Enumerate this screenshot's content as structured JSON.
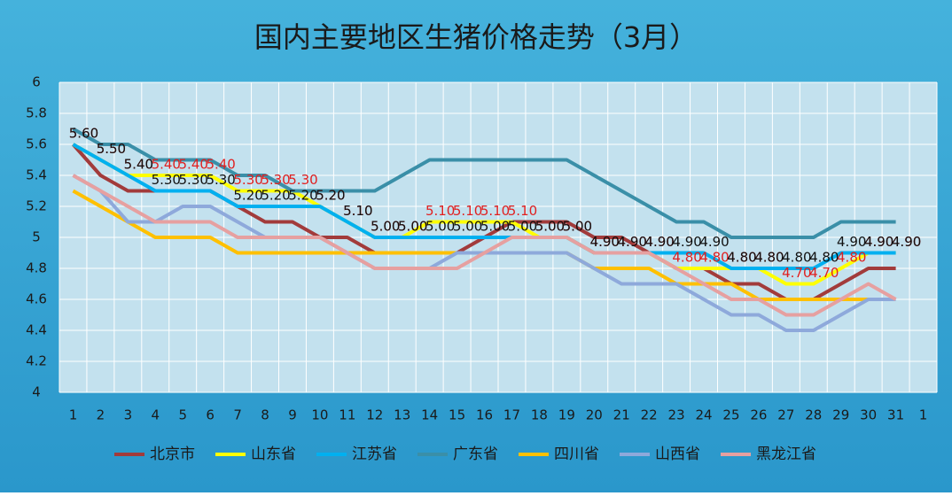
{
  "chart_data": {
    "type": "line",
    "title": "国内主要地区生猪价格走势（3月）",
    "categories": [
      "1",
      "2",
      "3",
      "4",
      "5",
      "6",
      "7",
      "8",
      "9",
      "10",
      "11",
      "12",
      "13",
      "14",
      "15",
      "16",
      "17",
      "18",
      "19",
      "20",
      "21",
      "22",
      "23",
      "24",
      "25",
      "26",
      "27",
      "28",
      "29",
      "30",
      "31",
      "1"
    ],
    "ylim": [
      4,
      6
    ],
    "yticks": [
      4,
      4.2,
      4.4,
      4.6,
      4.8,
      5,
      5.2,
      5.4,
      5.6,
      5.8,
      6
    ],
    "grid": true,
    "legend": "bottom",
    "series": [
      {
        "name": "北京市",
        "color": "#a23b3b",
        "values": [
          5.6,
          5.4,
          5.3,
          5.3,
          5.3,
          5.3,
          5.2,
          5.1,
          5.1,
          5.0,
          5.0,
          4.9,
          4.9,
          4.9,
          4.9,
          5.0,
          5.1,
          5.1,
          5.1,
          5.0,
          5.0,
          4.9,
          4.8,
          4.8,
          4.7,
          4.7,
          4.6,
          4.6,
          4.7,
          4.8,
          4.8,
          null
        ]
      },
      {
        "name": "山东省",
        "color": "#ffff00",
        "label_color": "#e02020",
        "values": [
          5.6,
          5.5,
          5.4,
          5.4,
          5.4,
          5.4,
          5.3,
          5.3,
          5.3,
          5.2,
          5.1,
          5.0,
          5.0,
          5.1,
          5.1,
          5.1,
          5.1,
          5.0,
          5.0,
          4.9,
          4.9,
          4.9,
          4.8,
          4.8,
          4.8,
          4.8,
          4.7,
          4.7,
          4.8,
          4.9,
          4.9,
          null
        ],
        "value_labels": [
          "5.60",
          "5.50",
          "5.40",
          "5.40",
          "5.40",
          "5.40",
          "5.30",
          "5.30",
          "5.30",
          "5.20",
          "5.10",
          "5.00",
          "5.00",
          "5.10",
          "5.10",
          "5.10",
          "5.10",
          "5.00",
          "5.00",
          "4.90",
          "4.90",
          "4.90",
          "4.80",
          "4.80",
          "4.80",
          "4.80",
          "4.70",
          "4.70",
          "4.80",
          "4.90",
          "4.90",
          null
        ]
      },
      {
        "name": "江苏省",
        "color": "#00b0f0",
        "label_color": "#111111",
        "values": [
          5.6,
          5.5,
          5.4,
          5.3,
          5.3,
          5.3,
          5.2,
          5.2,
          5.2,
          5.2,
          5.1,
          5.0,
          5.0,
          5.0,
          5.0,
          5.0,
          5.0,
          5.0,
          5.0,
          4.9,
          4.9,
          4.9,
          4.9,
          4.9,
          4.8,
          4.8,
          4.8,
          4.8,
          4.9,
          4.9,
          4.9,
          null
        ],
        "value_labels": [
          "5.60",
          "5.50",
          "5.40",
          "5.30",
          "5.30",
          "5.30",
          "5.20",
          "5.20",
          "5.20",
          "5.20",
          "5.10",
          "5.00",
          "5.00",
          "5.00",
          "5.00",
          "5.00",
          "5.00",
          "5.00",
          "5.00",
          "4.90",
          "4.90",
          "4.90",
          "4.90",
          "4.90",
          "4.80",
          "4.80",
          "4.80",
          "4.80",
          "4.90",
          "4.90",
          "4.90",
          null
        ]
      },
      {
        "name": "广东省",
        "color": "#3a8fa8",
        "values": [
          5.7,
          5.6,
          5.6,
          5.5,
          5.5,
          5.5,
          5.4,
          5.4,
          5.3,
          5.3,
          5.3,
          5.3,
          5.4,
          5.5,
          5.5,
          5.5,
          5.5,
          5.5,
          5.5,
          5.4,
          5.3,
          5.2,
          5.1,
          5.1,
          5.0,
          5.0,
          5.0,
          5.0,
          5.1,
          5.1,
          5.1,
          null
        ]
      },
      {
        "name": "四川省",
        "color": "#ffc000",
        "values": [
          5.3,
          5.2,
          5.1,
          5.0,
          5.0,
          5.0,
          4.9,
          4.9,
          4.9,
          4.9,
          4.9,
          4.9,
          4.9,
          4.9,
          4.9,
          4.9,
          4.9,
          4.9,
          4.9,
          4.8,
          4.8,
          4.8,
          4.7,
          4.7,
          4.7,
          4.6,
          4.6,
          4.6,
          4.6,
          4.6,
          null,
          null
        ]
      },
      {
        "name": "山西省",
        "color": "#8ea9db",
        "values": [
          5.4,
          5.3,
          5.1,
          5.1,
          5.2,
          5.2,
          5.1,
          5.0,
          5.0,
          5.0,
          4.9,
          4.8,
          4.8,
          4.8,
          4.9,
          4.9,
          4.9,
          4.9,
          4.9,
          4.8,
          4.7,
          4.7,
          4.7,
          4.6,
          4.5,
          4.5,
          4.4,
          4.4,
          4.5,
          4.6,
          4.6,
          null
        ]
      },
      {
        "name": "黑龙江省",
        "color": "#e6a0a0",
        "values": [
          5.4,
          5.3,
          5.2,
          5.1,
          5.1,
          5.1,
          5.0,
          5.0,
          5.0,
          5.0,
          4.9,
          4.8,
          4.8,
          4.8,
          4.8,
          4.9,
          5.0,
          5.0,
          5.0,
          4.9,
          4.9,
          4.9,
          4.8,
          4.7,
          4.6,
          4.6,
          4.5,
          4.5,
          4.6,
          4.7,
          4.6,
          null
        ]
      }
    ]
  }
}
